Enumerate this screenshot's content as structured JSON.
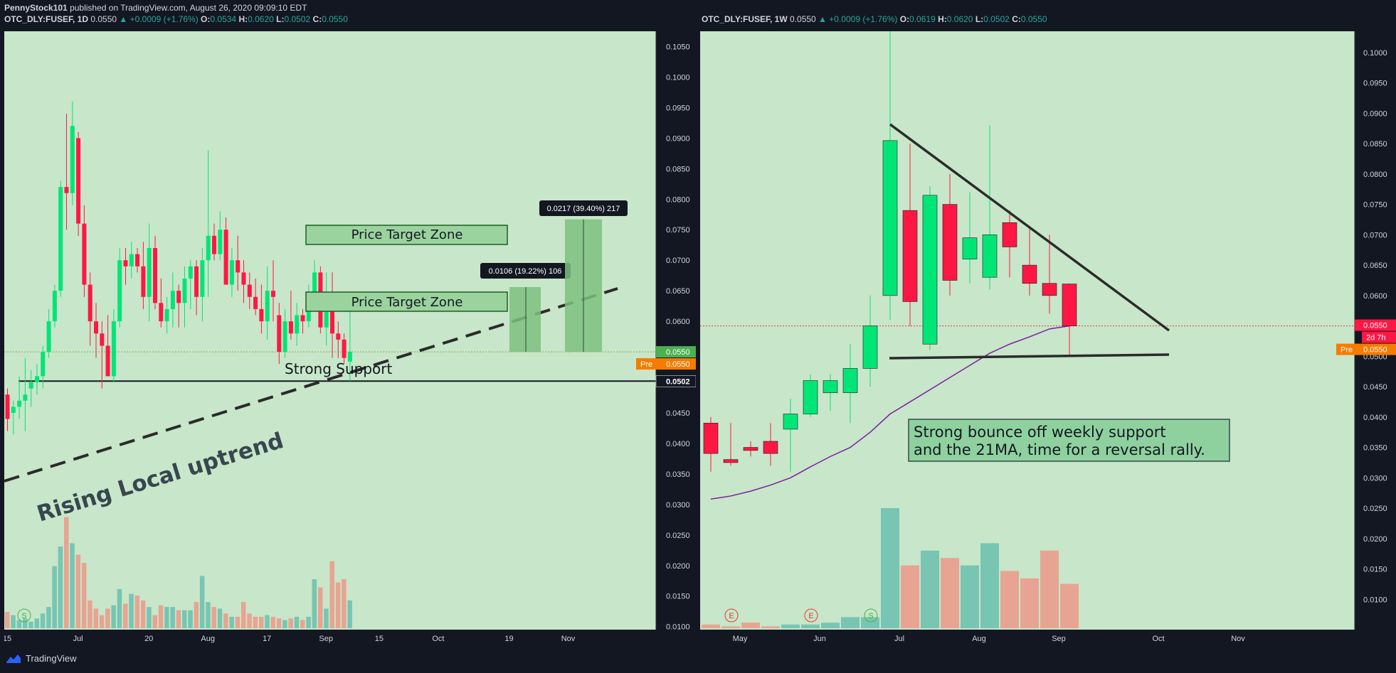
{
  "publisher": {
    "author": "PennyStock101",
    "text": "published on TradingView.com, August 26, 2020 09:09:10 EDT"
  },
  "left_header": {
    "symbol": "OTC_DLY:FUSEF, 1D",
    "price": "0.0550",
    "change": "▲ +0.0009 (+1.76%)",
    "o_label": "O:",
    "o": "0.0534",
    "h_label": "H:",
    "h": "0.0620",
    "l_label": "L:",
    "l": "0.0502",
    "c_label": "C:",
    "c": "0.0550"
  },
  "right_header": {
    "symbol": "OTC_DLY:FUSEF, 1W",
    "price": "0.0550",
    "change": "▲ +0.0009 (+1.76%)",
    "o_label": "O:",
    "o": "0.0619",
    "h_label": "H:",
    "h": "0.0620",
    "l_label": "L:",
    "l": "0.0502",
    "c_label": "C:",
    "c": "0.0550"
  },
  "footer": {
    "brand": "TradingView"
  },
  "colors": {
    "background": "#c8e6c9",
    "up": "#00e676",
    "down": "#ff1744",
    "volume_up": "#78c5b3",
    "volume_down": "#e8a492",
    "text_dark": "#131722",
    "header_value": "#26a69a"
  },
  "chart_data": [
    {
      "type": "candlestick",
      "title": "OTC_DLY:FUSEF, 1D",
      "ylim": [
        0.0095,
        0.1075
      ],
      "yticks": [
        "0.1050",
        "0.1000",
        "0.0950",
        "0.0900",
        "0.0850",
        "0.0800",
        "0.0750",
        "0.0700",
        "0.0650",
        "0.0600",
        "0.0550",
        "0.0500",
        "0.0450",
        "0.0400",
        "0.0350",
        "0.0300",
        "0.0250",
        "0.0200",
        "0.0150",
        "0.0100"
      ],
      "xticks": [
        "15",
        "Jul",
        "20",
        "Aug",
        "17",
        "Sep",
        "15",
        "Oct",
        "19",
        "Nov"
      ],
      "xtick_index": [
        0,
        12,
        24,
        34,
        44,
        54,
        63,
        73,
        85,
        95
      ],
      "volume_max": 1,
      "candles": [
        [
          0.048,
          0.049,
          0.042,
          0.044,
          0.1
        ],
        [
          0.045,
          0.047,
          0.0415,
          0.046,
          0.08
        ],
        [
          0.046,
          0.051,
          0.044,
          0.047,
          0.05
        ],
        [
          0.047,
          0.054,
          0.042,
          0.048,
          0.06
        ],
        [
          0.049,
          0.052,
          0.046,
          0.05,
          0.04
        ],
        [
          0.05,
          0.053,
          0.048,
          0.051,
          0.06
        ],
        [
          0.051,
          0.056,
          0.049,
          0.055,
          0.09
        ],
        [
          0.055,
          0.062,
          0.054,
          0.06,
          0.13
        ],
        [
          0.06,
          0.066,
          0.059,
          0.065,
          0.38
        ],
        [
          0.065,
          0.083,
          0.064,
          0.082,
          0.5
        ],
        [
          0.082,
          0.094,
          0.075,
          0.081,
          0.68
        ],
        [
          0.081,
          0.096,
          0.079,
          0.092,
          0.52
        ],
        [
          0.09,
          0.091,
          0.074,
          0.076,
          0.45
        ],
        [
          0.076,
          0.079,
          0.064,
          0.066,
          0.4
        ],
        [
          0.066,
          0.068,
          0.056,
          0.06,
          0.17
        ],
        [
          0.06,
          0.063,
          0.054,
          0.058,
          0.12
        ],
        [
          0.058,
          0.06,
          0.049,
          0.056,
          0.08
        ],
        [
          0.056,
          0.061,
          0.051,
          0.051,
          0.12
        ],
        [
          0.051,
          0.062,
          0.05,
          0.06,
          0.14
        ],
        [
          0.06,
          0.072,
          0.059,
          0.07,
          0.24
        ],
        [
          0.07,
          0.072,
          0.066,
          0.069,
          0.15
        ],
        [
          0.069,
          0.073,
          0.067,
          0.071,
          0.21
        ],
        [
          0.071,
          0.072,
          0.068,
          0.069,
          0.2
        ],
        [
          0.069,
          0.073,
          0.062,
          0.064,
          0.17
        ],
        [
          0.064,
          0.076,
          0.06,
          0.072,
          0.13
        ],
        [
          0.072,
          0.074,
          0.062,
          0.063,
          0.08
        ],
        [
          0.063,
          0.067,
          0.059,
          0.06,
          0.14
        ],
        [
          0.06,
          0.064,
          0.058,
          0.062,
          0.13
        ],
        [
          0.062,
          0.068,
          0.059,
          0.065,
          0.13
        ],
        [
          0.065,
          0.066,
          0.059,
          0.063,
          0.11
        ],
        [
          0.063,
          0.069,
          0.059,
          0.067,
          0.11
        ],
        [
          0.067,
          0.07,
          0.062,
          0.069,
          0.11
        ],
        [
          0.069,
          0.07,
          0.061,
          0.064,
          0.16
        ],
        [
          0.064,
          0.072,
          0.06,
          0.07,
          0.32
        ],
        [
          0.07,
          0.088,
          0.064,
          0.074,
          0.16
        ],
        [
          0.074,
          0.076,
          0.07,
          0.071,
          0.13
        ],
        [
          0.071,
          0.078,
          0.07,
          0.075,
          0.12
        ],
        [
          0.075,
          0.077,
          0.066,
          0.066,
          0.09
        ],
        [
          0.066,
          0.072,
          0.064,
          0.07,
          0.07
        ],
        [
          0.07,
          0.074,
          0.065,
          0.068,
          0.07
        ],
        [
          0.068,
          0.07,
          0.063,
          0.066,
          0.16
        ],
        [
          0.066,
          0.068,
          0.062,
          0.064,
          0.09
        ],
        [
          0.064,
          0.067,
          0.061,
          0.062,
          0.07
        ],
        [
          0.062,
          0.066,
          0.058,
          0.06,
          0.07
        ],
        [
          0.06,
          0.069,
          0.057,
          0.065,
          0.08
        ],
        [
          0.065,
          0.07,
          0.06,
          0.064,
          0.07
        ],
        [
          0.061,
          0.063,
          0.053,
          0.055,
          0.06
        ],
        [
          0.055,
          0.062,
          0.054,
          0.06,
          0.05
        ],
        [
          0.06,
          0.065,
          0.057,
          0.058,
          0.06
        ],
        [
          0.058,
          0.063,
          0.056,
          0.061,
          0.07
        ],
        [
          0.061,
          0.062,
          0.058,
          0.06,
          0.05
        ],
        [
          0.06,
          0.066,
          0.059,
          0.064,
          0.07
        ],
        [
          0.064,
          0.07,
          0.062,
          0.068,
          0.3
        ],
        [
          0.068,
          0.069,
          0.058,
          0.059,
          0.25
        ],
        [
          0.059,
          0.068,
          0.056,
          0.064,
          0.12
        ],
        [
          0.064,
          0.068,
          0.054,
          0.058,
          0.41
        ],
        [
          0.058,
          0.06,
          0.054,
          0.057,
          0.28
        ],
        [
          0.057,
          0.058,
          0.053,
          0.054,
          0.3
        ],
        [
          0.0534,
          0.062,
          0.0502,
          0.055,
          0.17
        ]
      ],
      "volume_ticks": [],
      "annotations": {
        "price_target_zone_1": "Price Target Zone",
        "price_target_zone_2": "Price Target Zone",
        "strong_support": "Strong Support",
        "rising_uptrend": "Rising Local uptrend",
        "measure_1": "0.0106 (19.22%) 106",
        "measure_2": "0.0217 (39.40%) 217",
        "price_label": "0.0550",
        "pre_label": "Pre",
        "pre_value": "0.0550",
        "support_label": "0.0502",
        "event_s": "S"
      }
    },
    {
      "type": "candlestick",
      "title": "OTC_DLY:FUSEF, 1W",
      "ylim": [
        0.005,
        0.1035
      ],
      "yticks": [
        "0.1000",
        "0.0950",
        "0.0900",
        "0.0850",
        "0.0800",
        "0.0750",
        "0.0700",
        "0.0650",
        "0.0600",
        "0.0550",
        "0.0500",
        "0.0450",
        "0.0400",
        "0.0350",
        "0.0300",
        "0.0250",
        "0.0200",
        "0.0150",
        "0.0100"
      ],
      "xticks": [
        "May",
        "Jun",
        "Jul",
        "Aug",
        "Sep",
        "Oct",
        "Nov"
      ],
      "candles": [
        [
          0.039,
          0.04,
          0.031,
          0.034,
          0.02
        ],
        [
          0.033,
          0.039,
          0.032,
          0.0325,
          0.01
        ],
        [
          0.035,
          0.036,
          0.0335,
          0.0345,
          0.03
        ],
        [
          0.036,
          0.039,
          0.032,
          0.034,
          0.01
        ],
        [
          0.038,
          0.043,
          0.031,
          0.0405,
          0.02
        ],
        [
          0.0405,
          0.047,
          0.04,
          0.046,
          0.02
        ],
        [
          0.044,
          0.047,
          0.041,
          0.046,
          0.03
        ],
        [
          0.044,
          0.052,
          0.039,
          0.048,
          0.06
        ],
        [
          0.048,
          0.06,
          0.045,
          0.055,
          0.06
        ],
        [
          0.06,
          0.104,
          0.056,
          0.0855,
          0.65
        ],
        [
          0.074,
          0.085,
          0.055,
          0.059,
          0.34
        ],
        [
          0.052,
          0.078,
          0.051,
          0.0765,
          0.42
        ],
        [
          0.075,
          0.08,
          0.06,
          0.0625,
          0.38
        ],
        [
          0.066,
          0.077,
          0.062,
          0.0695,
          0.34
        ],
        [
          0.063,
          0.088,
          0.061,
          0.07,
          0.46
        ],
        [
          0.072,
          0.074,
          0.063,
          0.068,
          0.31
        ],
        [
          0.065,
          0.071,
          0.06,
          0.062,
          0.27
        ],
        [
          0.062,
          0.07,
          0.057,
          0.06,
          0.42
        ],
        [
          0.0619,
          0.062,
          0.0502,
          0.055,
          0.24
        ]
      ],
      "ma21": [
        0.0265,
        0.027,
        0.0278,
        0.0288,
        0.03,
        0.0318,
        0.0335,
        0.035,
        0.0375,
        0.0405,
        0.0425,
        0.0445,
        0.0465,
        0.0485,
        0.0505,
        0.052,
        0.0532,
        0.0545,
        0.055
      ],
      "annotations": {
        "note_line1": "Strong bounce off weekly support",
        "note_line2": "and the 21MA, time for a reversal rally.",
        "price_label": "0.0550",
        "countdown": "2d 7h",
        "pre_label": "Pre",
        "pre_value": "0.0550",
        "event_e1": "E",
        "event_e2": "E",
        "event_s": "S"
      }
    }
  ]
}
